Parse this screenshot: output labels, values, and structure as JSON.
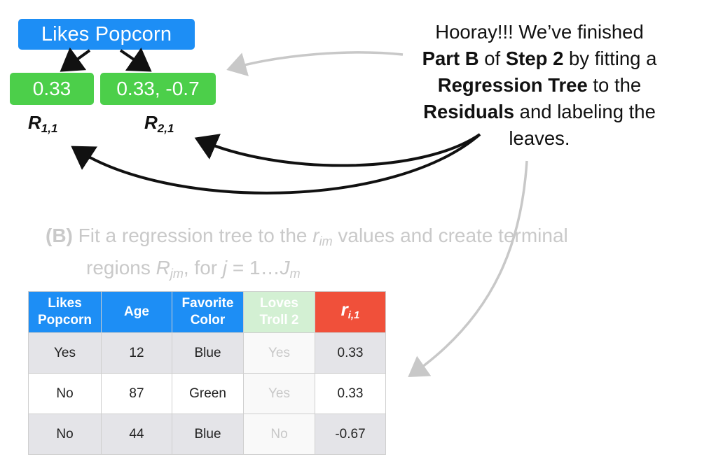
{
  "tree": {
    "root_label": "Likes Popcorn",
    "leaf_left_value": "0.33",
    "leaf_right_value": "0.33, -0.7",
    "region_left": {
      "letter": "R",
      "sub": "1,1"
    },
    "region_right": {
      "letter": "R",
      "sub": "2,1"
    }
  },
  "callout": {
    "t1": "Hooray!!! We’ve finished",
    "t2": "Part B",
    "t3": " of ",
    "t4": "Step 2",
    "t5": " by fitting a",
    "t6": "Regression Tree",
    "t7": " to the",
    "t8": "Residuals",
    "t9": " and labeling the",
    "t10": "leaves."
  },
  "step_b": {
    "label": "(B)",
    "text1": " Fit a regression tree to the ",
    "r": "r",
    "r_sub": "im",
    "text2": " values and create terminal",
    "text3": "regions ",
    "R": "R",
    "R_sub": "jm",
    "text4": ", for ",
    "j": "j",
    "text5": " = 1…",
    "J": "J",
    "J_sub": "m"
  },
  "table": {
    "headers": [
      "Likes\nPopcorn",
      "Age",
      "Favorite\nColor",
      "Loves\nTroll 2"
    ],
    "residual_header": {
      "letter": "r",
      "sub": "i,1"
    },
    "rows": [
      [
        "Yes",
        "12",
        "Blue",
        "Yes",
        "0.33"
      ],
      [
        "No",
        "87",
        "Green",
        "Yes",
        "0.33"
      ],
      [
        "No",
        "44",
        "Blue",
        "No",
        "-0.67"
      ]
    ]
  },
  "colors": {
    "blue": "#1d8ef5",
    "green": "#4ccf4a",
    "pale_green": "#d3f0d3",
    "red": "#f0503a",
    "gray_arrow": "#c8c8c8",
    "black_arrow": "#111111"
  }
}
